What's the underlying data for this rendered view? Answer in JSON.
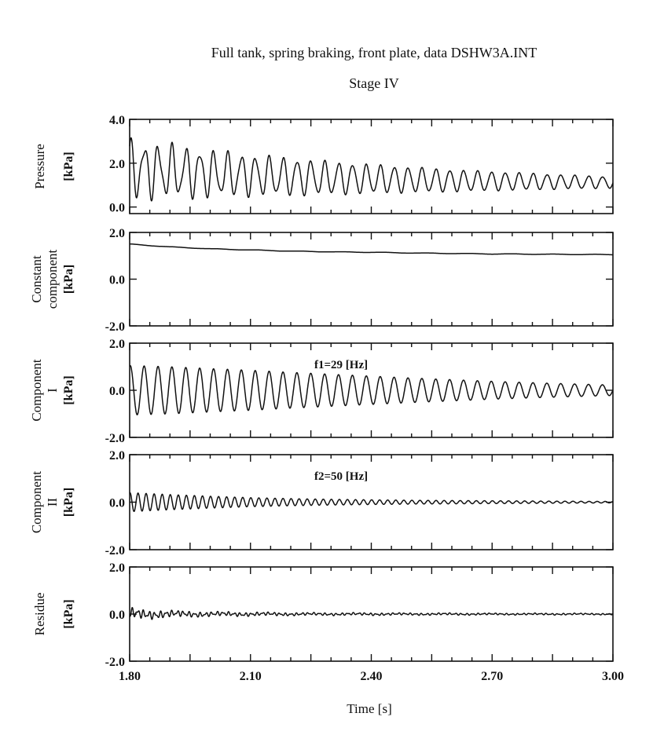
{
  "figure": {
    "title": "Full tank, spring braking, front plate, data DSHW3A.INT",
    "subtitle": "Stage IV"
  },
  "chart_data": [
    {
      "type": "line",
      "ylabel": "Pressure",
      "unit": "[kPa]",
      "ylim": [
        -0.3,
        4.0
      ],
      "yticks": [
        "4.0",
        "2.0",
        "0.0"
      ],
      "xlim": [
        1.8,
        3.0
      ],
      "annotation": "",
      "series": [
        {
          "x": [
            1.8,
            1.9,
            2.0,
            2.1,
            2.2,
            2.3,
            2.4,
            2.5,
            2.6,
            2.7,
            2.8,
            2.9,
            3.0
          ],
          "mean": [
            1.75,
            1.62,
            1.52,
            1.45,
            1.38,
            1.32,
            1.28,
            1.24,
            1.2,
            1.18,
            1.16,
            1.14,
            1.12
          ],
          "amplitude_f1": [
            1.1,
            1.05,
            0.95,
            0.85,
            0.78,
            0.7,
            0.62,
            0.55,
            0.48,
            0.42,
            0.36,
            0.3,
            0.25
          ],
          "amplitude_f2": [
            0.4,
            0.3,
            0.22,
            0.16,
            0.12,
            0.09,
            0.07,
            0.05,
            0.04,
            0.03,
            0.03,
            0.02,
            0.02
          ],
          "frequency_f1_hz": 29,
          "frequency_f2_hz": 50
        }
      ]
    },
    {
      "type": "line",
      "ylabel": "Constant component",
      "unit": "[kPa]",
      "ylim": [
        -2.0,
        2.0
      ],
      "yticks": [
        "2.0",
        "0.0",
        "-2.0"
      ],
      "xlim": [
        1.8,
        3.0
      ],
      "annotation": "",
      "series": [
        {
          "x": [
            1.8,
            1.9,
            2.0,
            2.1,
            2.2,
            2.3,
            2.4,
            2.5,
            2.6,
            2.7,
            2.8,
            2.9,
            3.0
          ],
          "y": [
            1.5,
            1.38,
            1.3,
            1.25,
            1.2,
            1.17,
            1.15,
            1.12,
            1.1,
            1.08,
            1.07,
            1.06,
            1.05
          ]
        }
      ]
    },
    {
      "type": "line",
      "ylabel": "Component I",
      "unit": "[kPa]",
      "ylim": [
        -2.0,
        2.0
      ],
      "yticks": [
        "2.0",
        "0.0",
        "-2.0"
      ],
      "xlim": [
        1.8,
        3.0
      ],
      "annotation": "f1=29 [Hz]",
      "series": [
        {
          "x": [
            1.8,
            1.9,
            2.0,
            2.1,
            2.2,
            2.3,
            2.4,
            2.5,
            2.6,
            2.7,
            2.8,
            2.9,
            3.0
          ],
          "amplitude": [
            1.05,
            1.0,
            0.92,
            0.85,
            0.76,
            0.68,
            0.6,
            0.52,
            0.45,
            0.38,
            0.32,
            0.27,
            0.22
          ],
          "frequency_hz": 29
        }
      ]
    },
    {
      "type": "line",
      "ylabel": "Component II",
      "unit": "[kPa]",
      "ylim": [
        -2.0,
        2.0
      ],
      "yticks": [
        "2.0",
        "0.0",
        "-2.0"
      ],
      "xlim": [
        1.8,
        3.0
      ],
      "annotation": "f2=50 [Hz]",
      "series": [
        {
          "x": [
            1.8,
            1.9,
            2.0,
            2.1,
            2.2,
            2.3,
            2.4,
            2.5,
            2.6,
            2.7,
            2.8,
            2.9,
            3.0
          ],
          "amplitude": [
            0.4,
            0.32,
            0.25,
            0.19,
            0.15,
            0.12,
            0.1,
            0.08,
            0.07,
            0.06,
            0.05,
            0.04,
            0.03
          ],
          "frequency_hz": 50
        }
      ]
    },
    {
      "type": "line",
      "ylabel": "Residue",
      "unit": "[kPa]",
      "ylim": [
        -2.0,
        2.0
      ],
      "yticks": [
        "2.0",
        "0.0",
        "-2.0"
      ],
      "xlim": [
        1.8,
        3.0
      ],
      "xticks": [
        1.8,
        2.1,
        2.4,
        2.7,
        3.0
      ],
      "xticklabels": [
        "1.80",
        "2.10",
        "2.40",
        "2.70",
        "3.00"
      ],
      "xlabel": "Time [s]",
      "annotation": "",
      "series": [
        {
          "x": [
            1.8,
            1.9,
            2.0,
            2.1,
            2.2,
            2.3,
            2.4,
            2.5,
            2.6,
            2.7,
            2.8,
            2.9,
            3.0
          ],
          "amplitude": [
            0.25,
            0.16,
            0.11,
            0.09,
            0.07,
            0.06,
            0.06,
            0.05,
            0.05,
            0.04,
            0.04,
            0.04,
            0.03
          ]
        }
      ]
    }
  ]
}
